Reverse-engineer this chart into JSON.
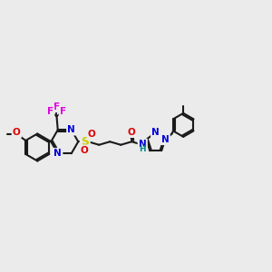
{
  "bg_color": "#ebebeb",
  "bond_color": "#1a1a1a",
  "N_color": "#0000dd",
  "O_color": "#dd0000",
  "S_color": "#cccc00",
  "F_color": "#dd00dd",
  "H_color": "#008888",
  "bond_lw": 1.5,
  "font_size": 7.5,
  "fig_w": 3.0,
  "fig_h": 3.0,
  "dpi": 100,
  "xlim": [
    0,
    12
  ],
  "ylim": [
    2,
    8.5
  ]
}
